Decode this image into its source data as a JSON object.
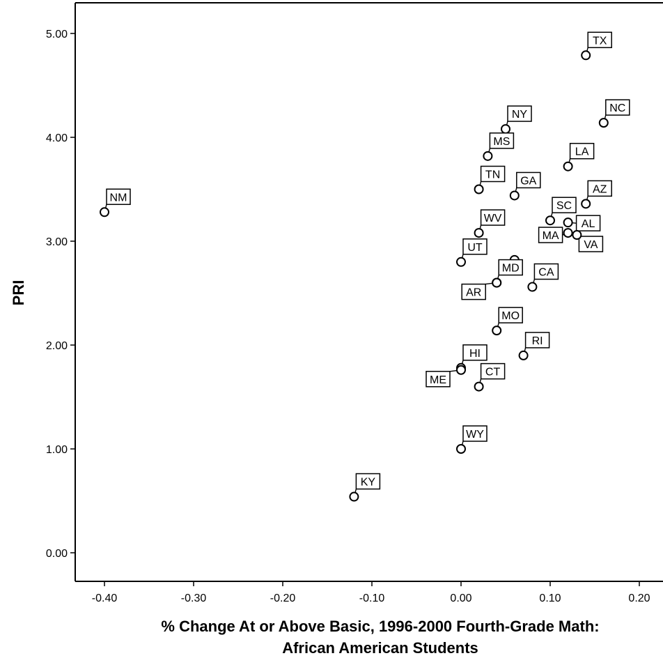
{
  "chart_data": {
    "type": "scatter",
    "title": "",
    "xlabel_line1": "% Change At or Above Basic, 1996-2000 Fourth-Grade Math:",
    "xlabel_line2": "African American Students",
    "ylabel": "PRI",
    "xlim": [
      -0.44,
      0.23
    ],
    "ylim": [
      -0.3,
      5.3
    ],
    "xticks": [
      -0.4,
      -0.3,
      -0.2,
      -0.1,
      0.0,
      0.1,
      0.2
    ],
    "xtick_labels": [
      "-0.40",
      "-0.30",
      "-0.20",
      "-0.10",
      "0.00",
      "0.10",
      "0.20"
    ],
    "yticks": [
      0,
      1,
      2,
      3,
      4,
      5
    ],
    "ytick_labels": [
      "0.00",
      "1.00",
      "2.00",
      "3.00",
      "4.00",
      "5.00"
    ],
    "grid": false,
    "points": [
      {
        "label": "TX",
        "x": 0.14,
        "y": 4.79,
        "pos": "ur"
      },
      {
        "label": "NC",
        "x": 0.16,
        "y": 4.14,
        "pos": "ur"
      },
      {
        "label": "NY",
        "x": 0.05,
        "y": 4.08,
        "pos": "ur"
      },
      {
        "label": "MS",
        "x": 0.03,
        "y": 3.82,
        "pos": "ur"
      },
      {
        "label": "LA",
        "x": 0.12,
        "y": 3.72,
        "pos": "ur"
      },
      {
        "label": "TN",
        "x": 0.02,
        "y": 3.5,
        "pos": "ur"
      },
      {
        "label": "GA",
        "x": 0.06,
        "y": 3.44,
        "pos": "ur"
      },
      {
        "label": "AZ",
        "x": 0.14,
        "y": 3.36,
        "pos": "ur"
      },
      {
        "label": "NM",
        "x": -0.4,
        "y": 3.28,
        "pos": "ur"
      },
      {
        "label": "SC",
        "x": 0.1,
        "y": 3.2,
        "pos": "ur"
      },
      {
        "label": "AL",
        "x": 0.12,
        "y": 3.18,
        "pos": "r"
      },
      {
        "label": "WV",
        "x": 0.02,
        "y": 3.08,
        "pos": "ur"
      },
      {
        "label": "MA",
        "x": 0.12,
        "y": 3.08,
        "pos": "l"
      },
      {
        "label": "VA",
        "x": 0.13,
        "y": 3.06,
        "pos": "dr"
      },
      {
        "label": "UT",
        "x": 0.0,
        "y": 2.8,
        "pos": "ur"
      },
      {
        "label": "",
        "x": 0.06,
        "y": 2.82,
        "pos": "none"
      },
      {
        "label": "MD",
        "x": 0.04,
        "y": 2.6,
        "pos": "ur"
      },
      {
        "label": "AR",
        "x": 0.04,
        "y": 2.6,
        "pos": "dl"
      },
      {
        "label": "CA",
        "x": 0.08,
        "y": 2.56,
        "pos": "ur"
      },
      {
        "label": "MO",
        "x": 0.04,
        "y": 2.14,
        "pos": "ur"
      },
      {
        "label": "RI",
        "x": 0.07,
        "y": 1.9,
        "pos": "ur"
      },
      {
        "label": "HI",
        "x": 0.0,
        "y": 1.78,
        "pos": "ur"
      },
      {
        "label": "ME",
        "x": 0.0,
        "y": 1.76,
        "pos": "dl"
      },
      {
        "label": "CT",
        "x": 0.02,
        "y": 1.6,
        "pos": "ur"
      },
      {
        "label": "WY",
        "x": 0.0,
        "y": 1.0,
        "pos": "ur"
      },
      {
        "label": "KY",
        "x": -0.12,
        "y": 0.54,
        "pos": "ur"
      }
    ]
  }
}
